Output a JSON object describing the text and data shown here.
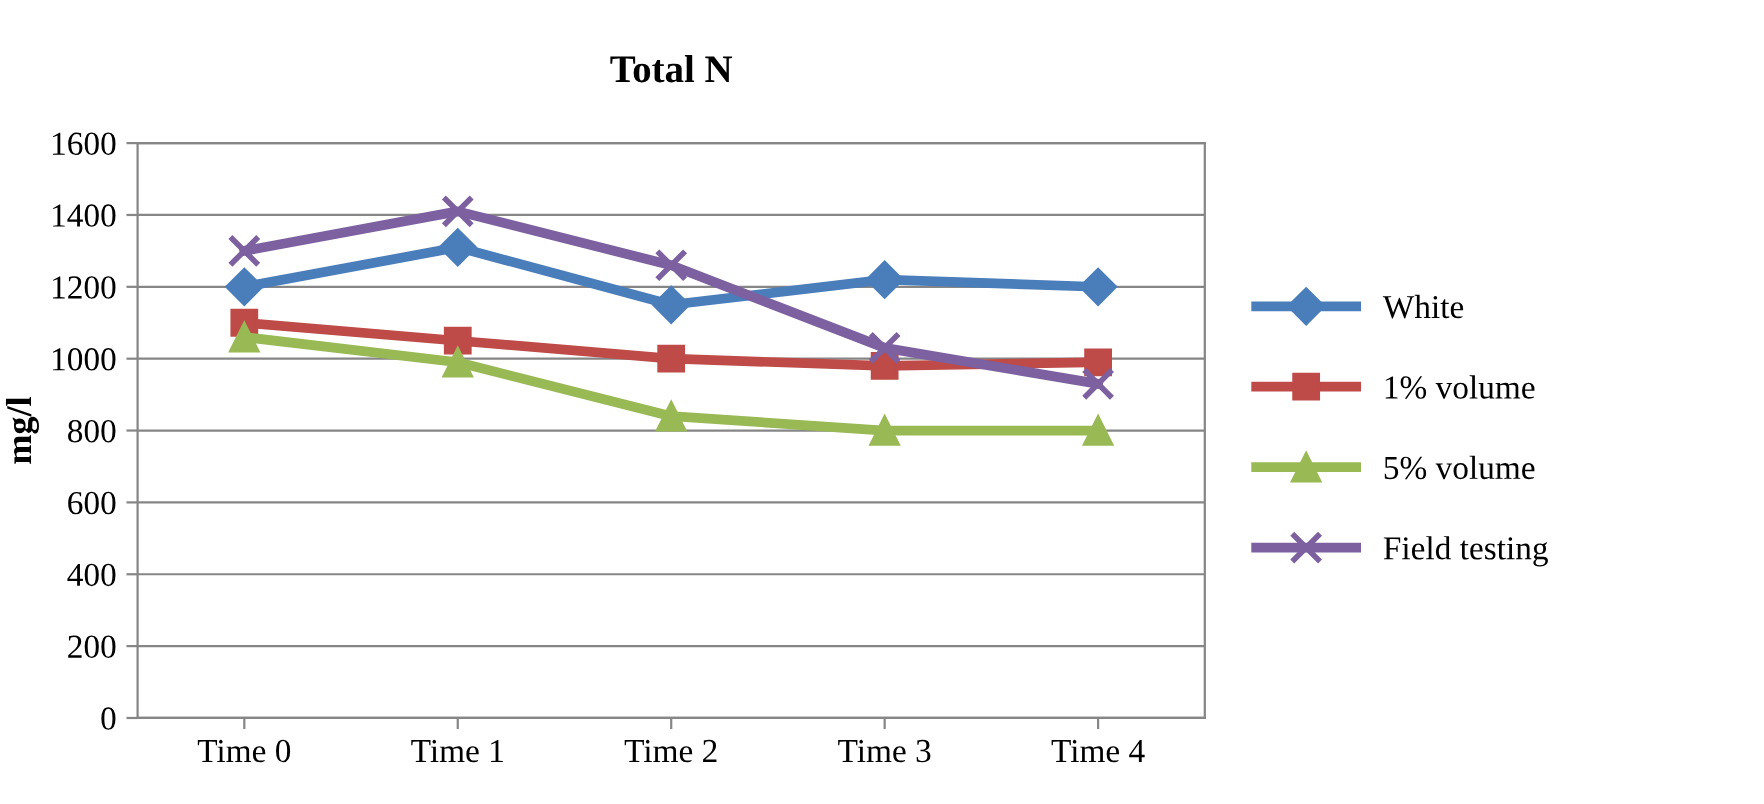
{
  "chart_data": {
    "type": "line",
    "title": "Total N",
    "ylabel": "mg/l",
    "categories": [
      "Time 0",
      "Time 1",
      "Time 2",
      "Time 3",
      "Time 4"
    ],
    "series": [
      {
        "name": "White",
        "color": "#4a7ebb",
        "marker": "diamond",
        "values": [
          1200,
          1310,
          1150,
          1220,
          1200
        ]
      },
      {
        "name": "1% volume",
        "color": "#be4b48",
        "marker": "square",
        "values": [
          1100,
          1050,
          1000,
          980,
          990
        ]
      },
      {
        "name": "5% volume",
        "color": "#98b954",
        "marker": "triangle",
        "values": [
          1060,
          990,
          840,
          800,
          800
        ]
      },
      {
        "name": "Field testing",
        "color": "#7d60a0",
        "marker": "cross",
        "values": [
          1300,
          1410,
          1260,
          1030,
          930
        ]
      }
    ],
    "ylim": [
      0,
      1600
    ],
    "yticks": [
      0,
      200,
      400,
      600,
      800,
      1000,
      1200,
      1400,
      1600
    ],
    "grid": "y",
    "legend": "right",
    "line_style": "solid"
  }
}
